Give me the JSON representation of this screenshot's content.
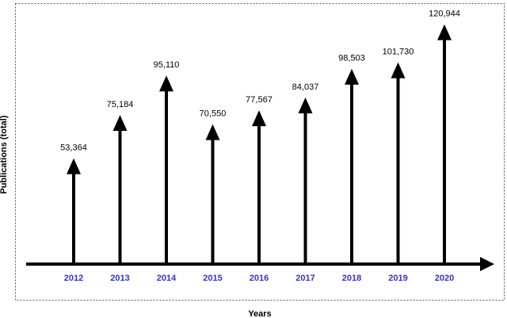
{
  "chart_data": {
    "type": "bar",
    "categories": [
      "2012",
      "2013",
      "2014",
      "2015",
      "2016",
      "2017",
      "2018",
      "2019",
      "2020"
    ],
    "values": [
      53364,
      75184,
      95110,
      70550,
      77567,
      84037,
      98503,
      101730,
      120944
    ],
    "value_labels": [
      "53,364",
      "75,184",
      "95,110",
      "70,550",
      "77,567",
      "84,037",
      "98,503",
      "101,730",
      "120,944"
    ],
    "xlabel": "Years",
    "ylabel": "Publications (total)",
    "ylim": [
      0,
      125000
    ],
    "grid": false,
    "legend": "none",
    "mark_style": "arrow",
    "colors": {
      "arrow": "#000000",
      "tick_label": "#3333cc",
      "frame": "#555555"
    }
  }
}
